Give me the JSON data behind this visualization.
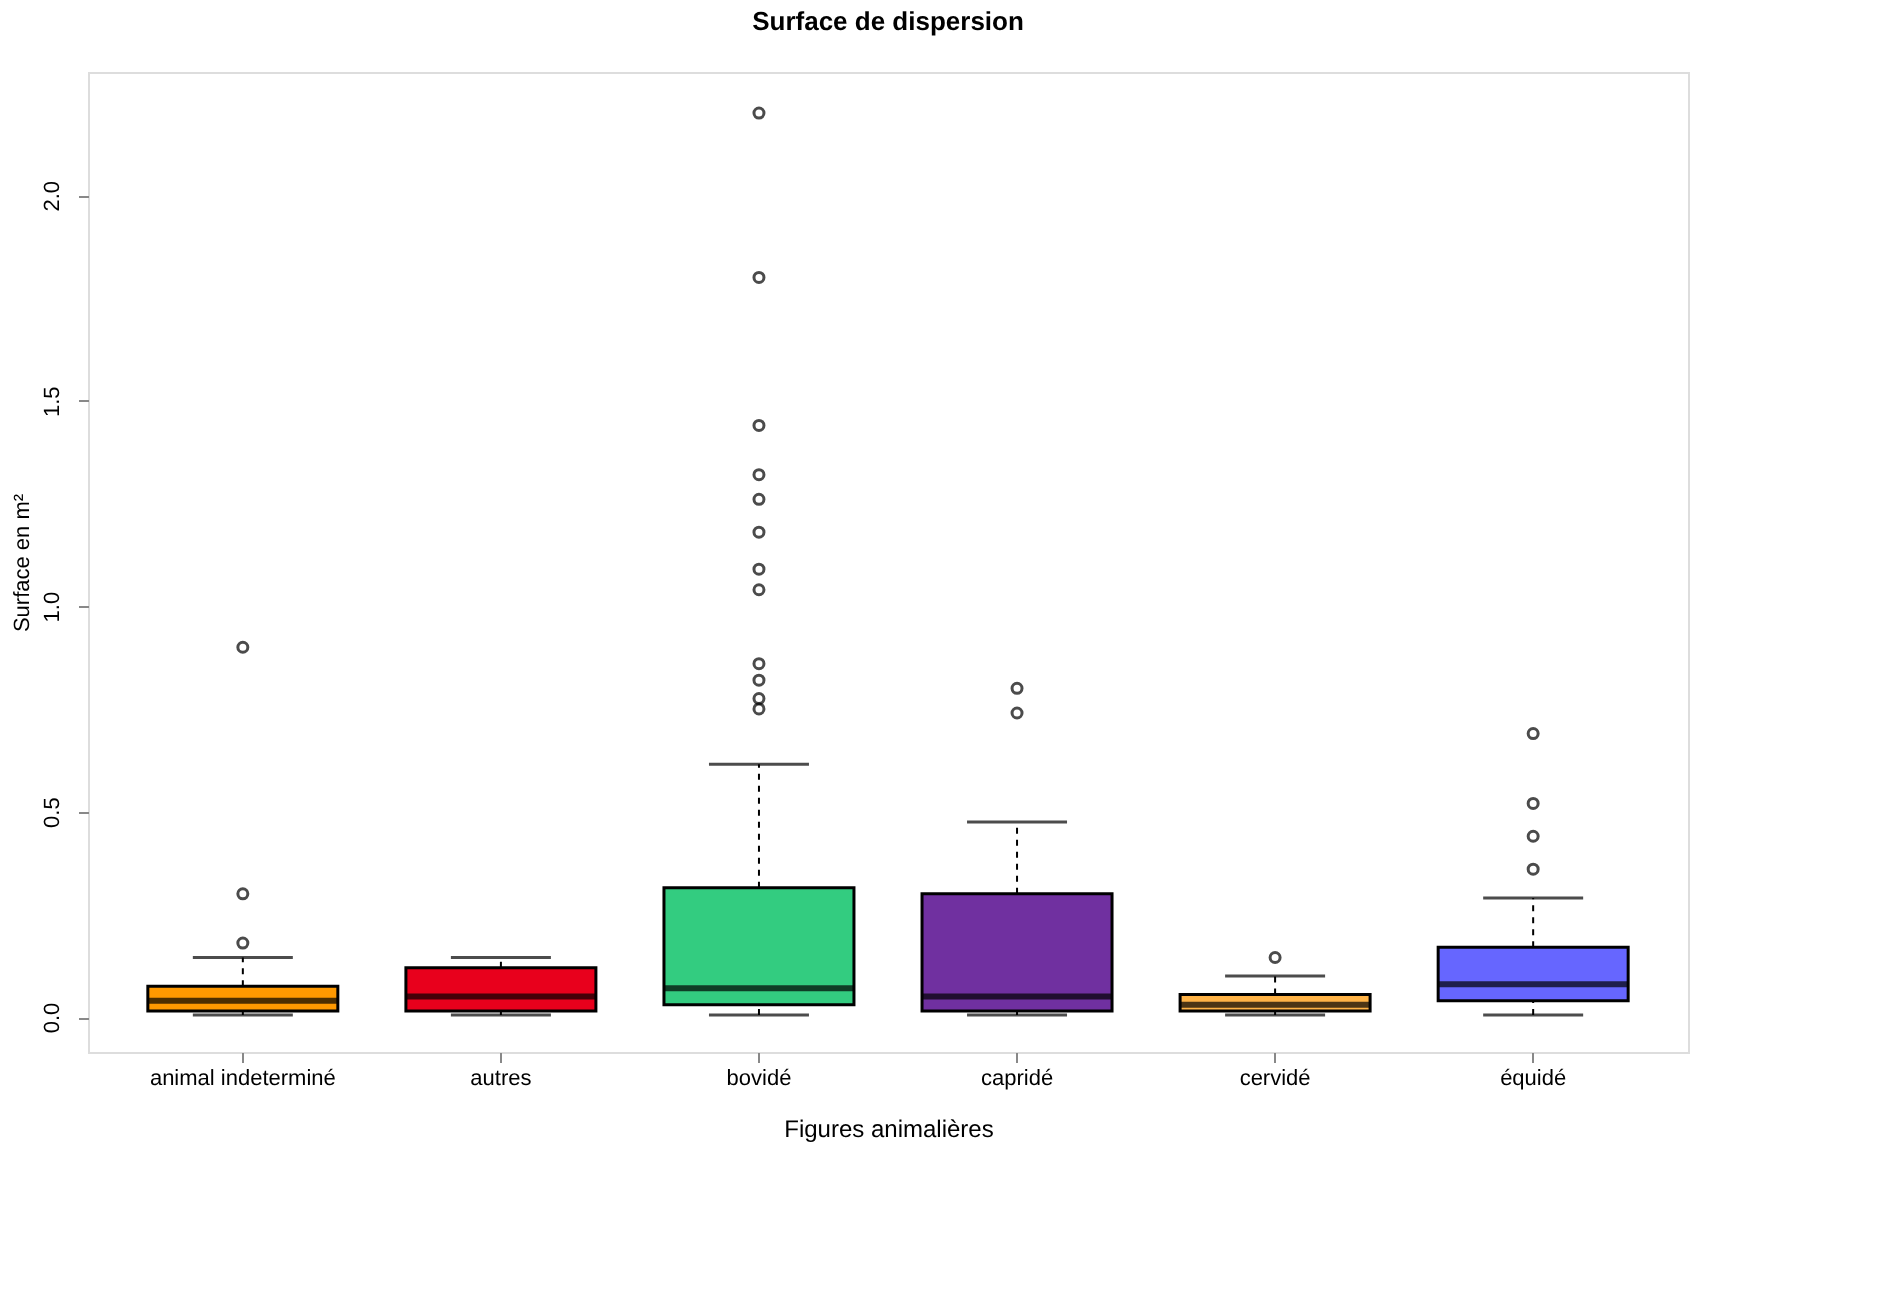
{
  "chart_data": {
    "type": "box",
    "title": "Surface de dispersion",
    "xlabel": "Figures animalières",
    "ylabel": "Surface en m²",
    "categories": [
      "animal indeterminé",
      "autres",
      "bovidé",
      "capridé",
      "cervidé",
      "équidé"
    ],
    "colors": [
      "#ff9900",
      "#e8001c",
      "#33cc80",
      "#7030a0",
      "#ffb347",
      "#6666ff"
    ],
    "boxes": [
      {
        "low": 0.005,
        "q1": 0.015,
        "median": 0.04,
        "q3": 0.075,
        "high": 0.145,
        "outliers": [
          0.18,
          0.3,
          0.9
        ]
      },
      {
        "low": 0.005,
        "q1": 0.015,
        "median": 0.05,
        "q3": 0.12,
        "high": 0.145
      },
      {
        "low": 0.005,
        "q1": 0.03,
        "median": 0.07,
        "q3": 0.315,
        "high": 0.615,
        "outliers": [
          0.75,
          0.775,
          0.82,
          0.86,
          1.04,
          1.09,
          1.18,
          1.26,
          1.32,
          1.44,
          1.8,
          2.2
        ]
      },
      {
        "low": 0.005,
        "q1": 0.015,
        "median": 0.05,
        "q3": 0.3,
        "high": 0.475,
        "outliers": [
          0.74,
          0.8
        ]
      },
      {
        "low": 0.005,
        "q1": 0.015,
        "median": 0.03,
        "q3": 0.055,
        "high": 0.1,
        "outliers": [
          0.145
        ]
      },
      {
        "low": 0.005,
        "q1": 0.04,
        "median": 0.08,
        "q3": 0.17,
        "high": 0.29,
        "outliers": [
          0.36,
          0.44,
          0.52,
          0.69
        ]
      }
    ],
    "ylim": [
      -0.085,
      2.3
    ],
    "yticks": [
      {
        "value": 0,
        "label": "0.0"
      },
      {
        "value": 0.5,
        "label": "0.5"
      },
      {
        "value": 1,
        "label": "1.0"
      },
      {
        "value": 1.5,
        "label": "1.5"
      },
      {
        "value": 2,
        "label": "2.0"
      }
    ],
    "grid": false,
    "legend": false
  }
}
